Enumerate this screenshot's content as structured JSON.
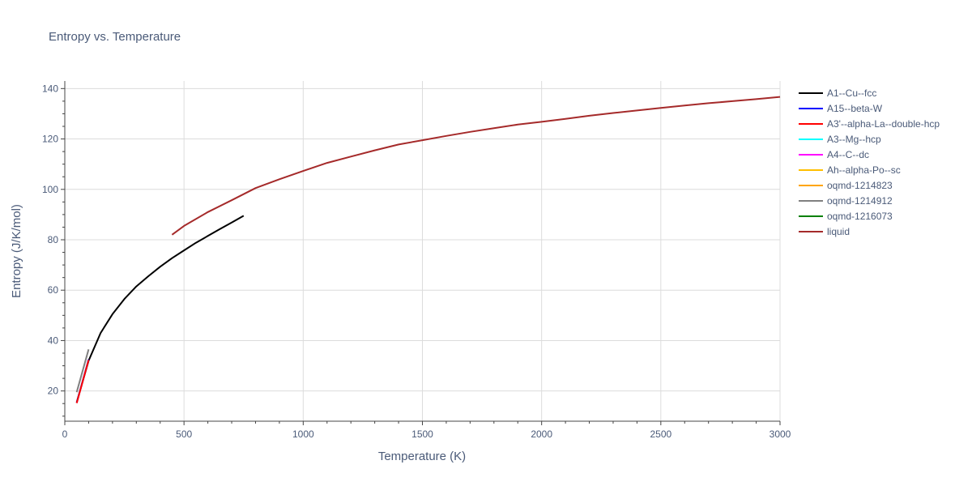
{
  "chart_data": {
    "type": "line",
    "title": "Entropy vs. Temperature",
    "xlabel": "Temperature (K)",
    "ylabel": "Entropy (J/K/mol)",
    "xlim": [
      0,
      3000
    ],
    "ylim": [
      8,
      143
    ],
    "xticks": [
      0,
      500,
      1000,
      1500,
      2000,
      2500,
      3000
    ],
    "yticks": [
      20,
      40,
      60,
      80,
      100,
      120,
      140
    ],
    "grid": true,
    "legend_position": "right",
    "series": [
      {
        "name": "A1--Cu--fcc",
        "color": "#000000",
        "x": [
          50,
          100,
          150,
          200,
          250,
          300,
          350,
          400,
          450,
          500,
          550,
          600,
          650,
          700,
          750
        ],
        "y": [
          15.5,
          32,
          43,
          50.5,
          56.5,
          61.5,
          65.5,
          69.3,
          72.7,
          75.8,
          78.8,
          81.5,
          84.2,
          86.8,
          89.5
        ]
      },
      {
        "name": "A15--beta-W",
        "color": "#0000ff",
        "x": [
          50,
          100
        ],
        "y": [
          15.3,
          32.5
        ]
      },
      {
        "name": "A3'--alpha-La--double-hcp",
        "color": "#ff0000",
        "x": [
          50,
          100
        ],
        "y": [
          15.2,
          32.3
        ]
      },
      {
        "name": "A3--Mg--hcp",
        "color": "#00ffff",
        "x": [],
        "y": []
      },
      {
        "name": "A4--C--dc",
        "color": "#ff00ff",
        "x": [],
        "y": []
      },
      {
        "name": "Ah--alpha-Po--sc",
        "color": "#ffbf00",
        "x": [],
        "y": []
      },
      {
        "name": "oqmd-1214823",
        "color": "#ffa500",
        "x": [],
        "y": []
      },
      {
        "name": "oqmd-1214912",
        "color": "#808080",
        "x": [
          50,
          100
        ],
        "y": [
          19.5,
          36.5
        ]
      },
      {
        "name": "oqmd-1216073",
        "color": "#008000",
        "x": [],
        "y": []
      },
      {
        "name": "liquid",
        "color": "#a52a2a",
        "x": [
          450,
          500,
          600,
          700,
          800,
          900,
          1000,
          1100,
          1200,
          1300,
          1400,
          1500,
          1600,
          1700,
          1800,
          1900,
          2000,
          2100,
          2200,
          2300,
          2400,
          2500,
          2600,
          2700,
          2800,
          2900,
          3000
        ],
        "y": [
          82,
          85.5,
          91,
          95.7,
          100.5,
          104,
          107.3,
          110.5,
          113,
          115.5,
          117.8,
          119.5,
          121.2,
          122.8,
          124.3,
          125.7,
          126.8,
          128,
          129.2,
          130.3,
          131.3,
          132.3,
          133.3,
          134.2,
          135,
          135.8,
          136.7
        ]
      }
    ]
  }
}
